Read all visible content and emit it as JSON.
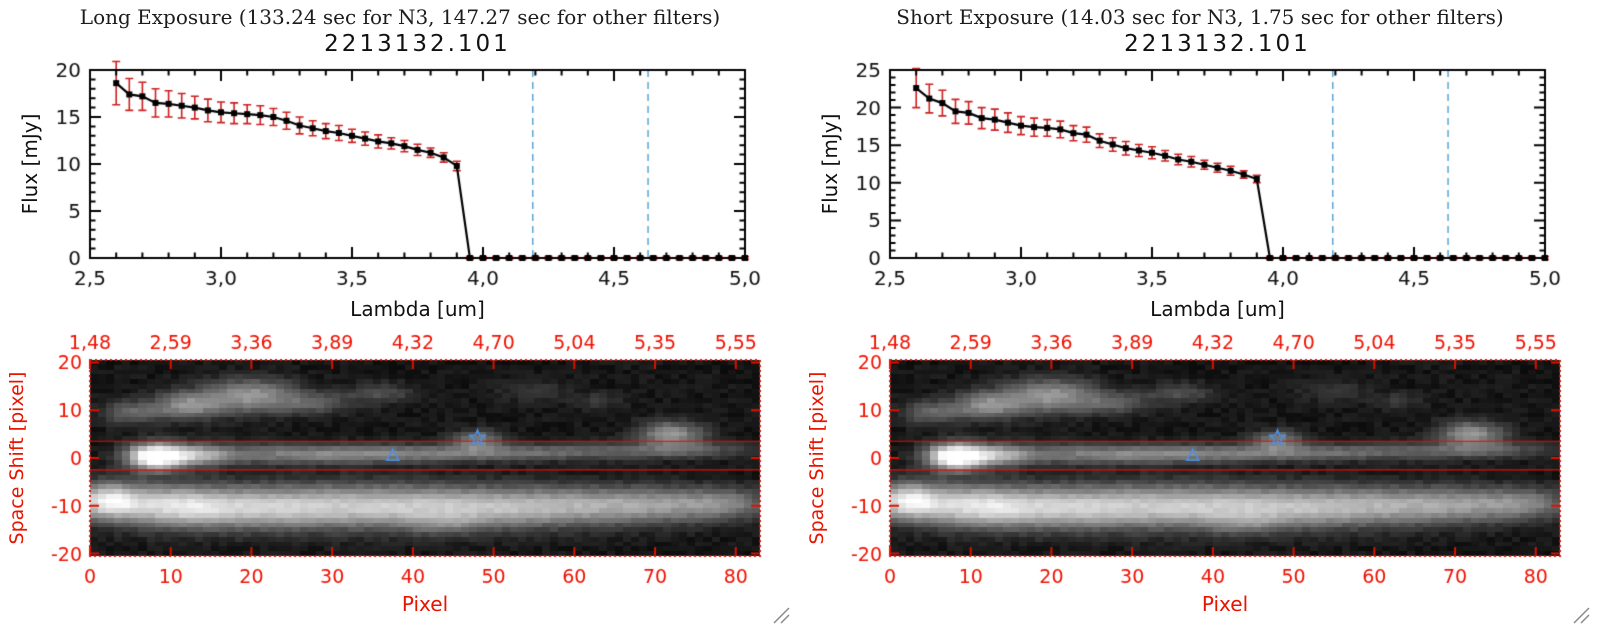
{
  "panels": [
    {
      "header": "Long Exposure (133.24 sec for N3, 147.27 sec for other filters)",
      "title": "2213132.101",
      "flux_ylabel": "Flux [mJy]",
      "flux_xlabel": "Lambda [um]",
      "img_ylabel": "Space Shift [pixel]",
      "img_xlabel": "Pixel"
    },
    {
      "header": "Short Exposure (14.03 sec for N3, 1.75 sec for other filters)",
      "title": "2213132.101",
      "flux_ylabel": "Flux [mJy]",
      "flux_xlabel": "Lambda [um]",
      "img_ylabel": "Space Shift [pixel]",
      "img_xlabel": "Pixel"
    }
  ],
  "ui": {
    "background": "#ffffff",
    "grip_color": "#8a8a8a"
  },
  "chart_data": [
    {
      "type": "line",
      "id": "flux_long",
      "title": "2213132.101",
      "xlabel": "Lambda [um]",
      "ylabel": "Flux [mJy]",
      "xlim": [
        2.5,
        5.0
      ],
      "ylim": [
        0,
        20
      ],
      "xticks": [
        2.5,
        3.0,
        3.5,
        4.0,
        4.5,
        5.0
      ],
      "xtick_labels": [
        "2,5",
        "3,0",
        "3,5",
        "4,0",
        "4,5",
        "5,0"
      ],
      "yticks": [
        0,
        5,
        10,
        15,
        20
      ],
      "xminor": 0.1,
      "yminor": 1,
      "marker": "square",
      "vlines": [
        4.19,
        4.63
      ],
      "colors": {
        "line": "#000000",
        "err": "#cc2020",
        "vline": "#4f9fd0"
      },
      "x": [
        2.6,
        2.65,
        2.7,
        2.75,
        2.8,
        2.85,
        2.9,
        2.95,
        3.0,
        3.05,
        3.1,
        3.15,
        3.2,
        3.25,
        3.3,
        3.35,
        3.4,
        3.45,
        3.5,
        3.55,
        3.6,
        3.65,
        3.7,
        3.75,
        3.8,
        3.85,
        3.9,
        3.95,
        4.0,
        4.05,
        4.1,
        4.15,
        4.2,
        4.25,
        4.3,
        4.35,
        4.4,
        4.45,
        4.5,
        4.55,
        4.6,
        4.65,
        4.7,
        4.75,
        4.8,
        4.85,
        4.9,
        4.95,
        5.0
      ],
      "y": [
        18.6,
        17.4,
        17.2,
        16.5,
        16.4,
        16.2,
        16.0,
        15.7,
        15.5,
        15.4,
        15.3,
        15.2,
        15.0,
        14.6,
        14.1,
        13.8,
        13.5,
        13.3,
        13.0,
        12.7,
        12.4,
        12.2,
        11.9,
        11.5,
        11.2,
        10.7,
        9.8,
        0,
        0,
        0,
        0,
        0,
        0,
        0,
        0,
        0,
        0,
        0,
        0,
        0,
        0,
        0,
        0,
        0,
        0,
        0,
        0,
        0,
        0
      ],
      "yerr": [
        2.3,
        1.7,
        1.5,
        1.5,
        1.4,
        1.3,
        1.2,
        1.2,
        1.1,
        1.1,
        1.0,
        1.0,
        0.9,
        0.9,
        0.9,
        0.8,
        0.8,
        0.8,
        0.7,
        0.7,
        0.7,
        0.6,
        0.6,
        0.6,
        0.5,
        0.5,
        0.5,
        0.15,
        0.15,
        0.15,
        0.15,
        0.15,
        0.15,
        0.15,
        0.15,
        0.15,
        0.15,
        0.15,
        0.15,
        0.15,
        0.15,
        0.15,
        0.15,
        0.15,
        0.15,
        0.15,
        0.15,
        0.15,
        0.15
      ]
    },
    {
      "type": "line",
      "id": "flux_short",
      "title": "2213132.101",
      "xlabel": "Lambda [um]",
      "ylabel": "Flux [mJy]",
      "xlim": [
        2.5,
        5.0
      ],
      "ylim": [
        0,
        25
      ],
      "xticks": [
        2.5,
        3.0,
        3.5,
        4.0,
        4.5,
        5.0
      ],
      "xtick_labels": [
        "2,5",
        "3,0",
        "3,5",
        "4,0",
        "4,5",
        "5,0"
      ],
      "yticks": [
        0,
        5,
        10,
        15,
        20,
        25
      ],
      "xminor": 0.1,
      "yminor": 1,
      "marker": "square",
      "vlines": [
        4.19,
        4.63
      ],
      "colors": {
        "line": "#000000",
        "err": "#cc2020",
        "vline": "#4f9fd0"
      },
      "x": [
        2.6,
        2.65,
        2.7,
        2.75,
        2.8,
        2.85,
        2.9,
        2.95,
        3.0,
        3.05,
        3.1,
        3.15,
        3.2,
        3.25,
        3.3,
        3.35,
        3.4,
        3.45,
        3.5,
        3.55,
        3.6,
        3.65,
        3.7,
        3.75,
        3.8,
        3.85,
        3.9,
        3.95,
        4.0,
        4.05,
        4.1,
        4.15,
        4.2,
        4.25,
        4.3,
        4.35,
        4.4,
        4.45,
        4.5,
        4.55,
        4.6,
        4.65,
        4.7,
        4.75,
        4.8,
        4.85,
        4.9,
        4.95,
        5.0
      ],
      "y": [
        22.6,
        21.2,
        20.6,
        19.5,
        19.3,
        18.6,
        18.4,
        18.0,
        17.6,
        17.4,
        17.3,
        17.1,
        16.6,
        16.4,
        15.6,
        15.1,
        14.6,
        14.3,
        14.0,
        13.6,
        13.1,
        12.8,
        12.4,
        12.0,
        11.6,
        11.1,
        10.5,
        0,
        0,
        0,
        0,
        0,
        0,
        0,
        0,
        0,
        0,
        0,
        0,
        0,
        0,
        0,
        0,
        0,
        0,
        0,
        0,
        0,
        0
      ],
      "yerr": [
        2.6,
        1.9,
        1.7,
        1.6,
        1.5,
        1.4,
        1.4,
        1.3,
        1.2,
        1.2,
        1.1,
        1.1,
        1.0,
        1.0,
        0.9,
        0.9,
        0.9,
        0.8,
        0.8,
        0.7,
        0.7,
        0.7,
        0.6,
        0.6,
        0.6,
        0.5,
        0.5,
        0.2,
        0.2,
        0.2,
        0.2,
        0.2,
        0.2,
        0.2,
        0.2,
        0.2,
        0.2,
        0.2,
        0.2,
        0.2,
        0.2,
        0.2,
        0.2,
        0.2,
        0.2,
        0.2,
        0.2,
        0.2,
        0.2
      ]
    },
    {
      "type": "heatmap",
      "id": "image_long",
      "xlabel": "Pixel",
      "ylabel": "Space Shift [pixel]",
      "xlim": [
        0,
        83
      ],
      "ylim": [
        -20.5,
        20.5
      ],
      "xticks": [
        0,
        10,
        20,
        30,
        40,
        50,
        60,
        70,
        80
      ],
      "xtick_labels": [
        "0",
        "10",
        "20",
        "30",
        "40",
        "50",
        "60",
        "70",
        "80"
      ],
      "yticks": [
        -20,
        -10,
        0,
        10,
        20
      ],
      "top_labels": [
        "1,48",
        "2,59",
        "3,36",
        "3,89",
        "4,32",
        "4,70",
        "5,04",
        "5,35",
        "5,55"
      ],
      "extract_y": [
        3.5,
        -2.5
      ],
      "markers": [
        {
          "shape": "triangle",
          "x": 37.5,
          "y": 0.6
        },
        {
          "shape": "star",
          "x": 48,
          "y": 4.2
        }
      ],
      "nx": 83,
      "ny": 41,
      "noise_seed": 20210,
      "noise_amp": 0.07,
      "base": 0.03,
      "colors": {
        "axis": "#dd1100",
        "labels": "#ee1100",
        "marker": "#4d8fe0"
      },
      "blobs": [
        [
          8,
          0.3,
          2.3,
          1.9,
          1.05
        ],
        [
          13,
          0.5,
          3,
          1.6,
          0.5
        ],
        [
          24,
          0.8,
          9,
          1.5,
          0.3
        ],
        [
          38,
          0.8,
          10,
          1.3,
          0.26
        ],
        [
          52,
          1.2,
          10,
          1.2,
          0.22
        ],
        [
          66,
          1.5,
          8,
          1.2,
          0.18
        ],
        [
          76,
          1.8,
          5,
          1.2,
          0.15
        ],
        [
          48,
          3.8,
          2.2,
          1.4,
          0.38
        ],
        [
          72,
          5,
          2.8,
          1.8,
          0.5
        ],
        [
          2,
          -9,
          3,
          2.6,
          0.75
        ],
        [
          10,
          -10,
          5,
          3,
          0.62
        ],
        [
          20,
          -10.5,
          7,
          3,
          0.5
        ],
        [
          33,
          -10,
          9,
          3.2,
          0.5
        ],
        [
          47,
          -10.5,
          9,
          3,
          0.45
        ],
        [
          60,
          -10,
          8,
          2.8,
          0.4
        ],
        [
          71,
          -9.8,
          6,
          2.5,
          0.34
        ],
        [
          79,
          -9.5,
          4,
          2.2,
          0.3
        ],
        [
          5,
          9.5,
          2.5,
          1.6,
          0.3
        ],
        [
          12,
          11,
          3,
          2,
          0.45
        ],
        [
          20,
          13,
          4,
          2.4,
          0.5
        ],
        [
          28,
          11.5,
          3,
          1.6,
          0.24
        ],
        [
          36,
          13.5,
          3,
          1.5,
          0.2
        ],
        [
          55,
          14,
          3,
          1.5,
          0.13
        ],
        [
          63,
          12,
          2,
          1.2,
          0.12
        ],
        [
          44,
          -14,
          3,
          1.5,
          0.15
        ]
      ]
    },
    {
      "type": "heatmap",
      "id": "image_short",
      "xlabel": "Pixel",
      "ylabel": "Space Shift [pixel]",
      "xlim": [
        0,
        83
      ],
      "ylim": [
        -20.5,
        20.5
      ],
      "xticks": [
        0,
        10,
        20,
        30,
        40,
        50,
        60,
        70,
        80
      ],
      "xtick_labels": [
        "0",
        "10",
        "20",
        "30",
        "40",
        "50",
        "60",
        "70",
        "80"
      ],
      "yticks": [
        -20,
        -10,
        0,
        10,
        20
      ],
      "top_labels": [
        "1,48",
        "2,59",
        "3,36",
        "3,89",
        "4,32",
        "4,70",
        "5,04",
        "5,35",
        "5,55"
      ],
      "extract_y": [
        3.5,
        -2.5
      ],
      "markers": [
        {
          "shape": "triangle",
          "x": 37.5,
          "y": 0.6
        },
        {
          "shape": "star",
          "x": 48,
          "y": 4.2
        }
      ],
      "nx": 83,
      "ny": 41,
      "noise_seed": 20210,
      "noise_amp": 0.07,
      "base": 0.03,
      "colors": {
        "axis": "#dd1100",
        "labels": "#ee1100",
        "marker": "#4d8fe0"
      },
      "blobs": [
        [
          8,
          0.3,
          2.3,
          1.9,
          1.05
        ],
        [
          13,
          0.5,
          3,
          1.6,
          0.5
        ],
        [
          24,
          0.8,
          9,
          1.5,
          0.3
        ],
        [
          38,
          0.8,
          10,
          1.3,
          0.26
        ],
        [
          52,
          1.2,
          10,
          1.2,
          0.22
        ],
        [
          66,
          1.5,
          8,
          1.2,
          0.18
        ],
        [
          76,
          1.8,
          5,
          1.2,
          0.15
        ],
        [
          48,
          3.8,
          2.2,
          1.4,
          0.38
        ],
        [
          72,
          5,
          2.8,
          1.8,
          0.5
        ],
        [
          2,
          -9,
          3,
          2.6,
          0.75
        ],
        [
          10,
          -10,
          5,
          3,
          0.62
        ],
        [
          20,
          -10.5,
          7,
          3,
          0.5
        ],
        [
          33,
          -10,
          9,
          3.2,
          0.5
        ],
        [
          47,
          -10.5,
          9,
          3,
          0.45
        ],
        [
          60,
          -10,
          8,
          2.8,
          0.4
        ],
        [
          71,
          -9.8,
          6,
          2.5,
          0.34
        ],
        [
          79,
          -9.5,
          4,
          2.2,
          0.3
        ],
        [
          5,
          9.5,
          2.5,
          1.6,
          0.3
        ],
        [
          12,
          11,
          3,
          2,
          0.45
        ],
        [
          20,
          13,
          4,
          2.4,
          0.5
        ],
        [
          28,
          11.5,
          3,
          1.6,
          0.24
        ],
        [
          36,
          13.5,
          3,
          1.5,
          0.2
        ],
        [
          55,
          14,
          3,
          1.5,
          0.13
        ],
        [
          63,
          12,
          2,
          1.2,
          0.12
        ],
        [
          44,
          -14,
          3,
          1.5,
          0.15
        ]
      ]
    }
  ]
}
